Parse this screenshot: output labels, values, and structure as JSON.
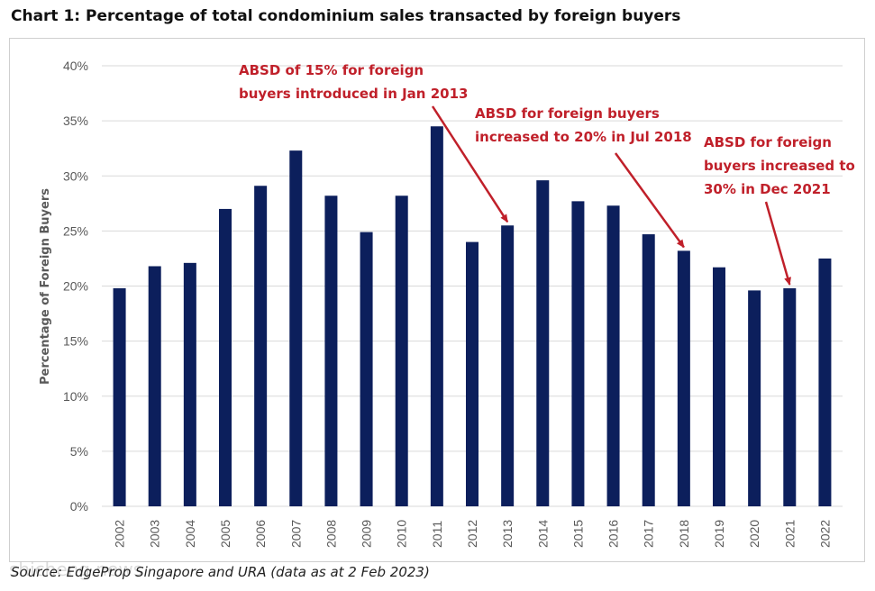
{
  "title": "Chart 1: Percentage of total condominium sales transacted by foreign buyers",
  "source": "Source: EdgeProp Singapore and URA (data as at 2 Feb 2023)",
  "watermark": "shicheng.news",
  "colors": {
    "bar": "#0c1f5c",
    "annotation": "#c0202a",
    "grid": "#d9d9d9",
    "axis_text": "#595959"
  },
  "chart_data": {
    "type": "bar",
    "title": "Chart 1: Percentage of total condominium sales transacted by foreign buyers",
    "xlabel": "",
    "ylabel": "Percentage of Foreign Buyers",
    "ylim": [
      0,
      40
    ],
    "y_ticks": [
      "0%",
      "5%",
      "10%",
      "15%",
      "20%",
      "25%",
      "30%",
      "35%",
      "40%"
    ],
    "grid": true,
    "legend": "none",
    "categories": [
      "2002",
      "2003",
      "2004",
      "2005",
      "2006",
      "2007",
      "2008",
      "2009",
      "2010",
      "2011",
      "2012",
      "2013",
      "2014",
      "2015",
      "2016",
      "2017",
      "2018",
      "2019",
      "2020",
      "2021",
      "2022"
    ],
    "values": [
      19.8,
      21.8,
      22.1,
      27.0,
      29.1,
      32.3,
      28.2,
      24.9,
      28.2,
      34.5,
      24.0,
      25.5,
      29.6,
      27.7,
      27.3,
      24.7,
      23.2,
      21.7,
      19.6,
      19.8,
      22.5
    ],
    "annotations": [
      {
        "lines": [
          "ABSD of 15% for foreign",
          "buyers introduced in Jan 2013"
        ],
        "target": "2013"
      },
      {
        "lines": [
          "ABSD for foreign buyers",
          "increased to 20% in Jul 2018"
        ],
        "target": "2018"
      },
      {
        "lines": [
          "ABSD for foreign",
          "buyers increased to",
          "30% in Dec 2021"
        ],
        "target": "2021"
      }
    ]
  }
}
